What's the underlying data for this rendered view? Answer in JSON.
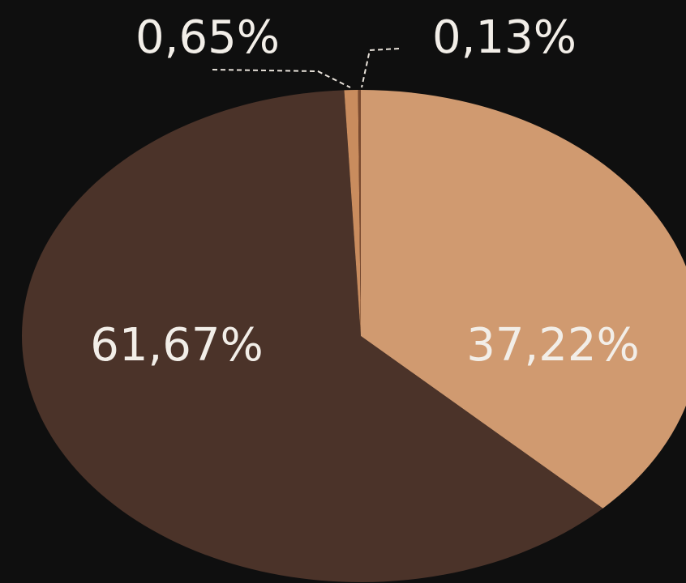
{
  "chart_data": {
    "type": "pie",
    "values": [
      37.22,
      61.67,
      0.65,
      0.13
    ],
    "value_labels": [
      "37,22%",
      "61,67%",
      "0,65%",
      "0,13%"
    ],
    "colors": [
      "#d09a70",
      "#4b3329",
      "#c98c5e",
      "#7a4a30"
    ]
  }
}
